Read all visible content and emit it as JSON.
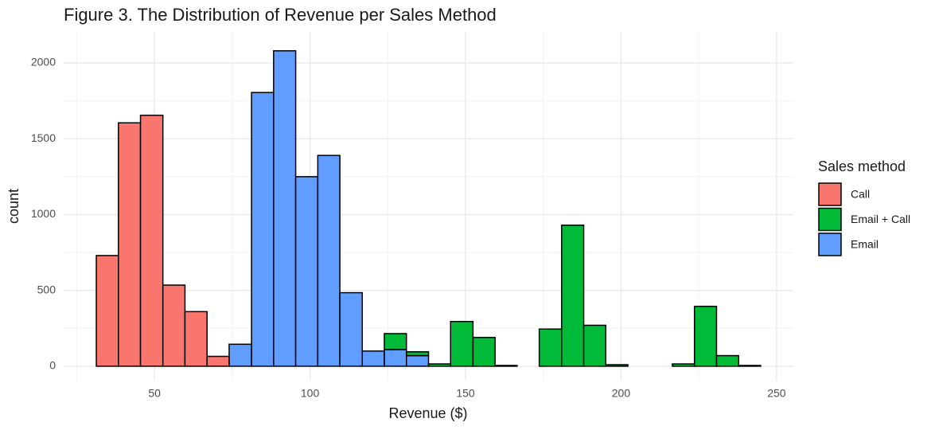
{
  "chart_data": {
    "type": "histogram",
    "title": "Figure 3. The Distribution of Revenue per Sales Method",
    "x_label": "Revenue ($)",
    "y_label": "count",
    "legend_title": "Sales method",
    "legend_position": "right",
    "stacked": true,
    "bins": [
      31.3,
      38.4,
      45.5,
      52.7,
      59.8,
      66.9,
      74.0,
      81.2,
      88.3,
      95.4,
      102.5,
      109.6,
      116.8,
      123.9,
      131.0,
      138.1,
      145.2,
      152.4,
      159.5,
      166.6,
      173.7,
      180.9,
      188.0,
      195.1,
      202.2,
      209.3,
      216.5,
      223.6,
      230.7,
      237.8,
      244.9
    ],
    "series": [
      {
        "name": "Call",
        "color": "#F8766D",
        "values": [
          730,
          1605,
          1655,
          535,
          360,
          65,
          0,
          0,
          0,
          0,
          0,
          0,
          0,
          0,
          0,
          0,
          0,
          0,
          0,
          0,
          0,
          0,
          0,
          0,
          0,
          0,
          0,
          0,
          0,
          0
        ]
      },
      {
        "name": "Email + Call",
        "color": "#00BA38",
        "values": [
          0,
          0,
          0,
          0,
          0,
          0,
          0,
          0,
          0,
          0,
          0,
          0,
          0,
          105,
          25,
          15,
          295,
          190,
          5,
          0,
          245,
          930,
          270,
          10,
          0,
          0,
          15,
          395,
          70,
          5
        ]
      },
      {
        "name": "Email",
        "color": "#619CFF",
        "values": [
          0,
          0,
          0,
          0,
          0,
          0,
          145,
          1805,
          2080,
          1250,
          1390,
          485,
          100,
          110,
          70,
          0,
          0,
          0,
          0,
          0,
          0,
          0,
          0,
          0,
          0,
          0,
          0,
          0,
          0,
          0
        ]
      }
    ],
    "xlim": [
      20.8,
      255.4
    ],
    "ylim": [
      -95,
      2205
    ],
    "xticks": [
      50,
      100,
      150,
      200,
      250
    ],
    "yticks": [
      0,
      500,
      1000,
      1500,
      2000
    ],
    "x_minor_ticks": [
      25,
      75,
      125,
      175,
      225
    ],
    "y_minor_ticks": [
      250,
      750,
      1250,
      1750
    ],
    "grid": true
  }
}
